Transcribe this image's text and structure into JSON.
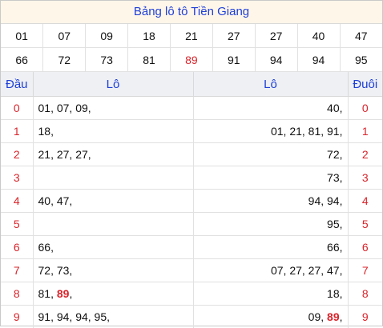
{
  "title": "Bảng lô tô Tiền Giang",
  "numbers": [
    [
      "01",
      "07",
      "09",
      "18",
      "21",
      "27",
      "27",
      "40",
      "47"
    ],
    [
      "66",
      "72",
      "73",
      "81",
      "89",
      "91",
      "94",
      "94",
      "95"
    ]
  ],
  "highlight_number": "89",
  "headers": {
    "dau": "Đầu",
    "lo_left": "Lô",
    "lo_right": "Lô",
    "duoi": "Đuôi"
  },
  "rows": [
    {
      "dau": "0",
      "dau_list": [
        "01, 07, 09,"
      ],
      "duoi_list": [
        "40,"
      ],
      "duoi": "0"
    },
    {
      "dau": "1",
      "dau_list": [
        "18,"
      ],
      "duoi_list": [
        "01, 21, 81, 91,"
      ],
      "duoi": "1"
    },
    {
      "dau": "2",
      "dau_list": [
        "21, 27, 27,"
      ],
      "duoi_list": [
        "72,"
      ],
      "duoi": "2"
    },
    {
      "dau": "3",
      "dau_list": [
        ""
      ],
      "duoi_list": [
        "73,"
      ],
      "duoi": "3"
    },
    {
      "dau": "4",
      "dau_list": [
        "40, 47,"
      ],
      "duoi_list": [
        "94, 94,"
      ],
      "duoi": "4"
    },
    {
      "dau": "5",
      "dau_list": [
        ""
      ],
      "duoi_list": [
        "95,"
      ],
      "duoi": "5"
    },
    {
      "dau": "6",
      "dau_list": [
        "66,"
      ],
      "duoi_list": [
        "66,"
      ],
      "duoi": "6"
    },
    {
      "dau": "7",
      "dau_list": [
        "72, 73,"
      ],
      "duoi_list": [
        "07, 27, 27, 47,"
      ],
      "duoi": "7"
    },
    {
      "dau": "8",
      "dau_list": [
        "81, ",
        "89",
        ","
      ],
      "duoi_list": [
        "18,"
      ],
      "duoi": "8"
    },
    {
      "dau": "9",
      "dau_list": [
        "91, 94, 94, 95,"
      ],
      "duoi_list": [
        "09, ",
        "89",
        ","
      ],
      "duoi": "9"
    }
  ],
  "colors": {
    "title_text": "#1e3fd8",
    "digit_red": "#d9242b",
    "title_bg": "#fff6ea",
    "header_bg": "#eef0f4"
  }
}
